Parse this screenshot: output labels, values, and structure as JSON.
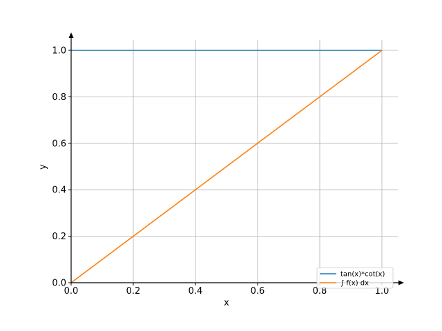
{
  "chart_data": {
    "type": "line",
    "title": "",
    "xlabel": "x",
    "ylabel": "y",
    "xlim": [
      0.0,
      1.0
    ],
    "ylim": [
      0.0,
      1.0
    ],
    "xticks": [
      0.0,
      0.2,
      0.4,
      0.6,
      0.8,
      1.0
    ],
    "yticks": [
      0.0,
      0.2,
      0.4,
      0.6,
      0.8,
      1.0
    ],
    "xtick_labels": [
      "0.0",
      "0.2",
      "0.4",
      "0.6",
      "0.8",
      "1.0"
    ],
    "ytick_labels": [
      "0.0",
      "0.2",
      "0.4",
      "0.6",
      "0.8",
      "1.0"
    ],
    "grid": true,
    "legend_position": "bottom-right",
    "series": [
      {
        "name": "tan(x)*cot(x)",
        "color": "#1f77b4",
        "x": [
          0.0,
          1.0
        ],
        "y": [
          1.0,
          1.0
        ]
      },
      {
        "name": "∫ f(x) dx",
        "color": "#ff7f0e",
        "x": [
          0.0,
          1.0
        ],
        "y": [
          0.0,
          1.0
        ]
      }
    ]
  }
}
